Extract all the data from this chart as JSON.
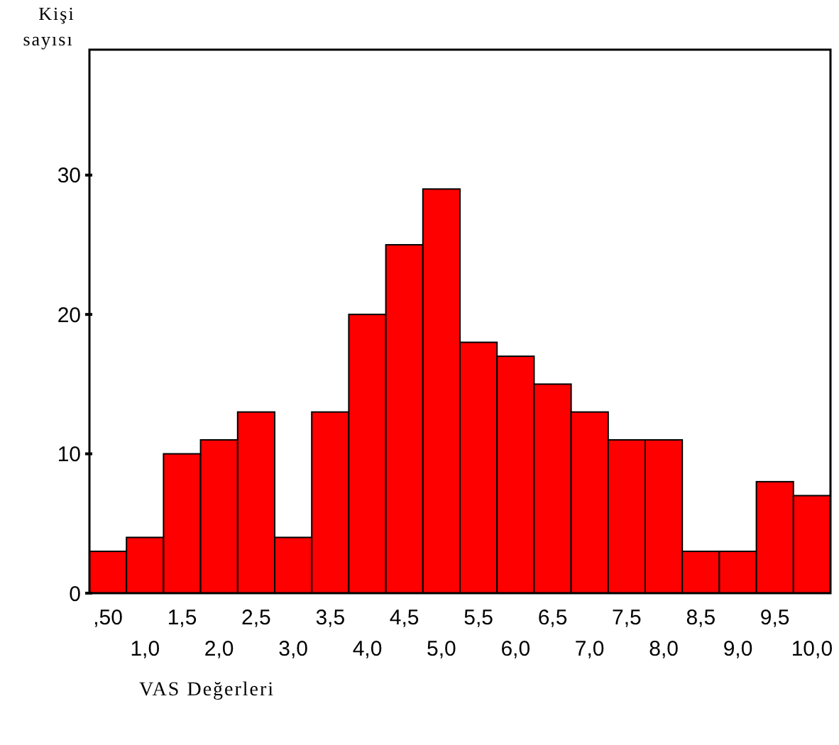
{
  "chart_data": {
    "type": "bar",
    "xlabel": "VAS Değerleri",
    "ylabel": "Kişi sayısı",
    "categories": [
      ",50",
      "1,0",
      "1,5",
      "2,0",
      "2,5",
      "3,0",
      "3,5",
      "4,0",
      "4,5",
      "5,0",
      "5,5",
      "6,0",
      "6,5",
      "7,0",
      "7,5",
      "8,0",
      "8,5",
      "9,0",
      "9,5",
      "10,0"
    ],
    "values": [
      3,
      4,
      10,
      11,
      13,
      4,
      13,
      20,
      25,
      29,
      18,
      17,
      15,
      13,
      11,
      11,
      3,
      3,
      8,
      7
    ],
    "color": "#ff0000",
    "ylim": [
      0,
      39
    ],
    "yticks": [
      0,
      10,
      20,
      30
    ]
  }
}
